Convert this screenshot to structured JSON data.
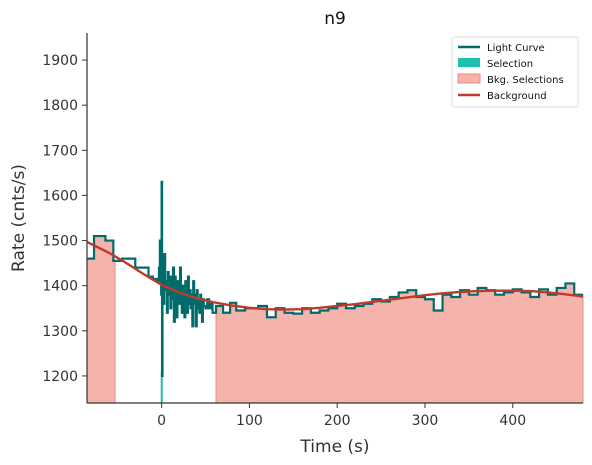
{
  "chart_data": {
    "type": "line",
    "title": "n9",
    "xlabel": "Time (s)",
    "ylabel": "Rate (cnts/s)",
    "xlim": [
      -85,
      480
    ],
    "ylim": [
      1140,
      1960
    ],
    "xticks": [
      0,
      100,
      200,
      300,
      400
    ],
    "yticks": [
      1200,
      1300,
      1400,
      1500,
      1600,
      1700,
      1800,
      1900
    ],
    "grid": false,
    "legend_position": "top-right",
    "colors": {
      "light_curve": "#006b6b",
      "selection": "#20c0b0",
      "bkg_fill": "#f4b4ac",
      "bkg_edge": "#ee8880",
      "background": "#c0392b"
    },
    "legend": [
      {
        "label": "Light Curve",
        "kind": "line",
        "color": "#006b6b"
      },
      {
        "label": "Selection",
        "kind": "patch",
        "color": "#20c0b0"
      },
      {
        "label": "Bkg. Selections",
        "kind": "patch",
        "color": "#f4b4ac"
      },
      {
        "label": "Background",
        "kind": "line",
        "color": "#c0392b"
      }
    ],
    "selection": [
      -1,
      1
    ],
    "bkg_selections": [
      [
        -85,
        -53
      ],
      [
        62,
        480
      ]
    ],
    "light_curve": {
      "x": [
        -85,
        -77,
        -64,
        -55,
        -45,
        -30,
        -15,
        -10,
        -5,
        -3,
        -2,
        -1,
        -0.5,
        0,
        0.5,
        1,
        2,
        3,
        4,
        5,
        6,
        7,
        8,
        9,
        10,
        11,
        12,
        13,
        14,
        15,
        16,
        17,
        18,
        19,
        20,
        21,
        22,
        23,
        24,
        25,
        26,
        27,
        28,
        29,
        30,
        31,
        32,
        33,
        34,
        35,
        36,
        37,
        38,
        39,
        40,
        41,
        42,
        43,
        44,
        45,
        46,
        47,
        48,
        50,
        52,
        54,
        56,
        58,
        62,
        70,
        78,
        85,
        95,
        110,
        120,
        130,
        140,
        150,
        160,
        170,
        180,
        190,
        200,
        210,
        220,
        230,
        240,
        250,
        260,
        270,
        280,
        290,
        300,
        310,
        320,
        330,
        340,
        350,
        360,
        370,
        380,
        390,
        400,
        410,
        420,
        430,
        440,
        450,
        460,
        470,
        480
      ],
      "y": [
        1460,
        1510,
        1500,
        1455,
        1460,
        1440,
        1420,
        1415,
        1410,
        1440,
        1500,
        1470,
        1380,
        1630,
        1200,
        1440,
        1360,
        1470,
        1390,
        1410,
        1340,
        1430,
        1380,
        1420,
        1350,
        1420,
        1370,
        1440,
        1320,
        1420,
        1390,
        1330,
        1410,
        1380,
        1360,
        1440,
        1390,
        1340,
        1400,
        1380,
        1330,
        1410,
        1370,
        1340,
        1420,
        1360,
        1390,
        1350,
        1380,
        1310,
        1410,
        1380,
        1360,
        1310,
        1390,
        1370,
        1350,
        1340,
        1380,
        1360,
        1320,
        1370,
        1355,
        1350,
        1370,
        1350,
        1360,
        1340,
        1355,
        1340,
        1362,
        1345,
        1350,
        1355,
        1330,
        1350,
        1340,
        1338,
        1350,
        1340,
        1345,
        1350,
        1360,
        1350,
        1355,
        1360,
        1370,
        1365,
        1375,
        1385,
        1390,
        1375,
        1370,
        1345,
        1380,
        1375,
        1390,
        1380,
        1395,
        1390,
        1380,
        1385,
        1392,
        1385,
        1375,
        1392,
        1380,
        1395,
        1405,
        1380,
        1380
      ]
    },
    "background_model": {
      "x": [
        -85,
        -60,
        -40,
        -20,
        0,
        20,
        40,
        60,
        80,
        100,
        120,
        140,
        160,
        180,
        200,
        220,
        240,
        260,
        280,
        300,
        320,
        340,
        360,
        380,
        400,
        420,
        440,
        460,
        480
      ],
      "y": [
        1497,
        1473,
        1450,
        1425,
        1402,
        1385,
        1372,
        1363,
        1356,
        1351,
        1348,
        1347,
        1348,
        1351,
        1355,
        1359,
        1364,
        1369,
        1374,
        1379,
        1383,
        1386,
        1388,
        1389,
        1389,
        1388,
        1385,
        1381,
        1376
      ]
    }
  }
}
